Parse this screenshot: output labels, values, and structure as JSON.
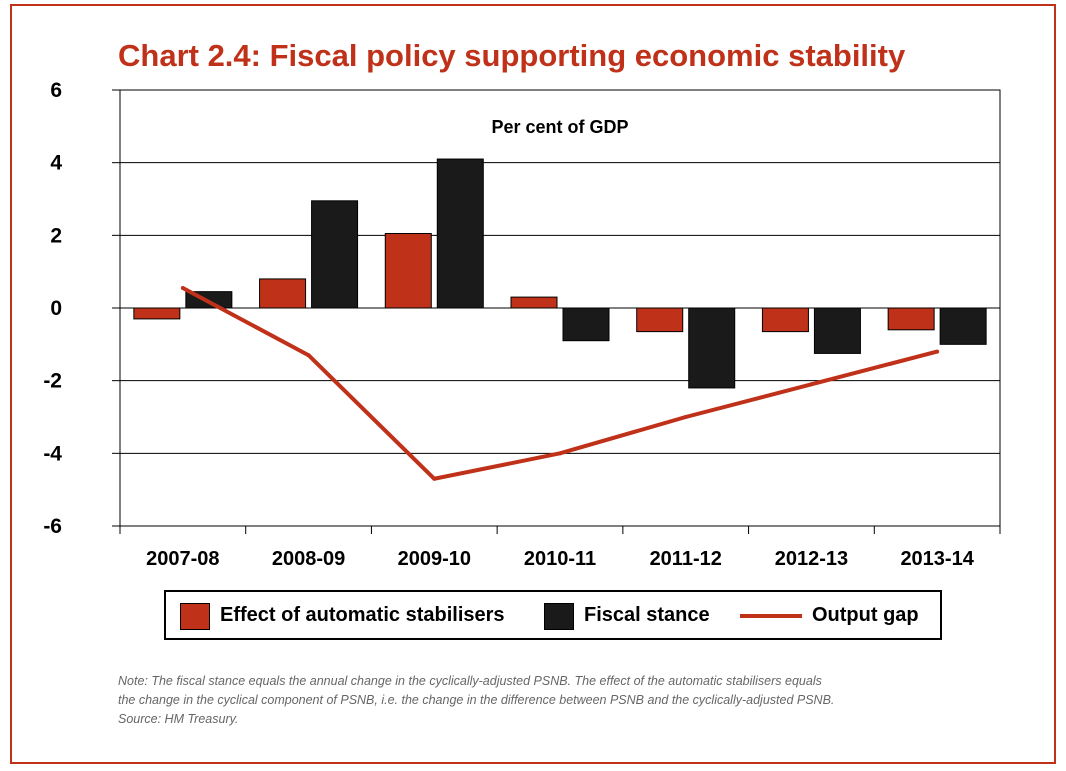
{
  "title": "Chart 2.4: Fiscal policy supporting economic stability",
  "colors": {
    "accent": "#c0311a",
    "stabilisers": "#c0311a",
    "fiscal": "#1a1a1a",
    "output_gap": "#c0311a"
  },
  "chart_data": {
    "type": "bar",
    "title": "Chart 2.4: Fiscal policy supporting economic stability",
    "unit_label": "Per cent of GDP",
    "xlabel": "",
    "ylabel": "",
    "categories": [
      "2007-08",
      "2008-09",
      "2009-10",
      "2010-11",
      "2011-12",
      "2012-13",
      "2013-14"
    ],
    "ylim": [
      -6,
      6
    ],
    "yticks": [
      "6",
      "4",
      "2",
      "0",
      "-2",
      "-4",
      "-6"
    ],
    "grid": true,
    "series": [
      {
        "name": "Effect of automatic stabilisers",
        "kind": "bar",
        "values": [
          -0.3,
          0.8,
          2.05,
          0.3,
          -0.65,
          -0.65,
          -0.6
        ]
      },
      {
        "name": "Fiscal stance",
        "kind": "bar",
        "values": [
          0.45,
          2.95,
          4.1,
          -0.9,
          -2.2,
          -1.25,
          -1.0
        ]
      },
      {
        "name": "Output gap",
        "kind": "line",
        "values": [
          0.55,
          -1.3,
          -4.7,
          -4.0,
          -3.0,
          -2.1,
          -1.2
        ]
      }
    ],
    "legend_position": "bottom"
  },
  "note": {
    "lines": [
      "Note: The fiscal stance equals the annual change in the cyclically-adjusted PSNB. The effect of the automatic stabilisers equals",
      "the change in the cyclical component of PSNB, i.e. the change in the difference between PSNB and the cyclically-adjusted PSNB.",
      "Source: HM Treasury."
    ]
  }
}
